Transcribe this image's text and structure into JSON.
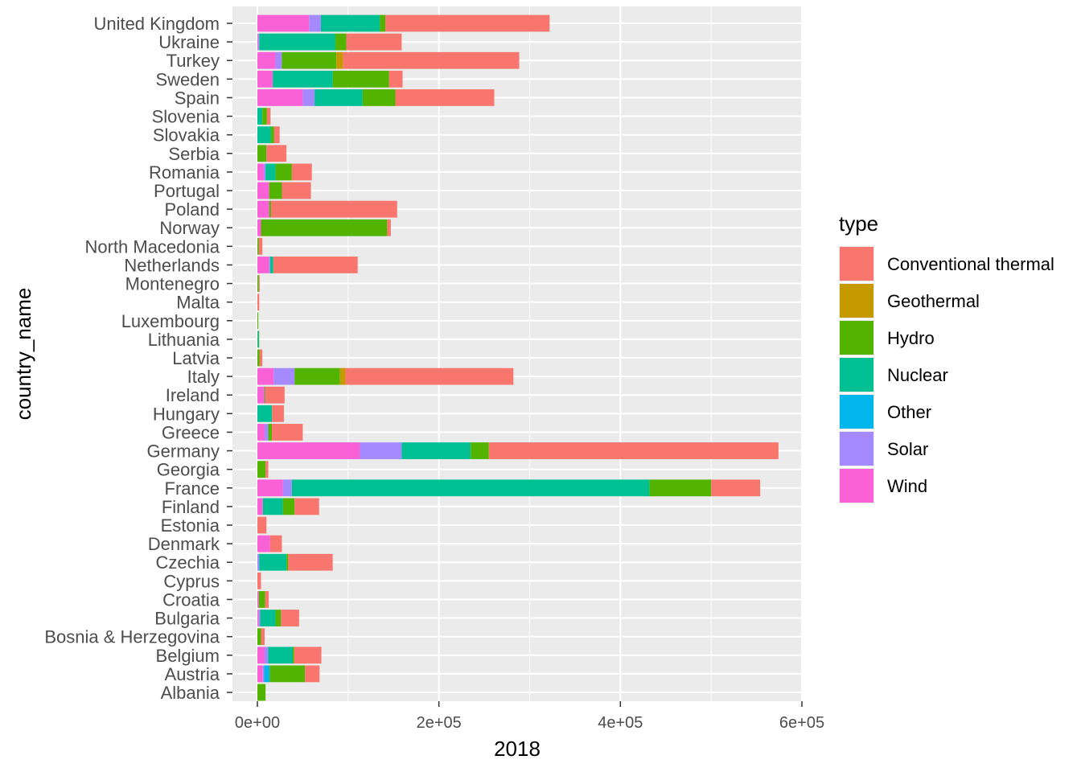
{
  "chart_data": {
    "type": "bar",
    "orientation": "horizontal",
    "stacked": true,
    "xlabel": "2018",
    "ylabel": "country_name",
    "xlim": [
      0,
      600000
    ],
    "x_ticks": [
      0,
      200000,
      400000,
      600000
    ],
    "x_tick_labels": [
      "0e+00",
      "2e+05",
      "4e+05",
      "6e+05"
    ],
    "grid": true,
    "legend": {
      "title": "type",
      "position": "right"
    },
    "categories": [
      "United Kingdom",
      "Ukraine",
      "Turkey",
      "Sweden",
      "Spain",
      "Slovenia",
      "Slovakia",
      "Serbia",
      "Romania",
      "Portugal",
      "Poland",
      "Norway",
      "North Macedonia",
      "Netherlands",
      "Montenegro",
      "Malta",
      "Luxembourg",
      "Lithuania",
      "Latvia",
      "Italy",
      "Ireland",
      "Hungary",
      "Greece",
      "Germany",
      "Georgia",
      "France",
      "Finland",
      "Estonia",
      "Denmark",
      "Czechia",
      "Cyprus",
      "Croatia",
      "Bulgaria",
      "Bosnia & Herzegovina",
      "Belgium",
      "Austria",
      "Albania"
    ],
    "stack_order": [
      "Wind",
      "Solar",
      "Other",
      "Nuclear",
      "Hydro",
      "Geothermal",
      "Conventional thermal"
    ],
    "series": [
      {
        "name": "Conventional thermal",
        "color": "#F8766D",
        "values": [
          181000,
          61000,
          194000,
          15000,
          109000,
          4000,
          6000,
          22000,
          22000,
          32000,
          139000,
          4000,
          4000,
          93000,
          1000,
          2000,
          0,
          0,
          3000,
          185000,
          21000,
          13000,
          34000,
          319000,
          3000,
          54000,
          27000,
          10000,
          13000,
          49000,
          4000,
          4000,
          20000,
          4000,
          30000,
          16000,
          0
        ]
      },
      {
        "name": "Geothermal",
        "color": "#C49A00",
        "values": [
          0,
          0,
          7500,
          0,
          0,
          0,
          0,
          0,
          0,
          0,
          0,
          0,
          0,
          0,
          0,
          0,
          0,
          0,
          0,
          6100,
          0,
          0,
          0,
          200,
          0,
          0,
          0,
          0,
          0,
          0,
          0,
          0,
          0,
          0,
          0,
          0,
          0
        ]
      },
      {
        "name": "Hydro",
        "color": "#53B400",
        "values": [
          6000,
          12000,
          60000,
          62000,
          36000,
          5000,
          3500,
          10000,
          18000,
          14000,
          2000,
          139000,
          1500,
          0,
          1500,
          0,
          1000,
          1000,
          2500,
          50000,
          1000,
          200,
          4000,
          20000,
          9000,
          68000,
          13000,
          0,
          0,
          2000,
          0,
          7000,
          6000,
          4000,
          1500,
          39000,
          9000
        ]
      },
      {
        "name": "Nuclear",
        "color": "#00C094",
        "values": [
          65000,
          84000,
          0,
          66000,
          53000,
          5500,
          15000,
          0,
          11000,
          0,
          0,
          0,
          0,
          3500,
          0,
          0,
          0,
          0,
          0,
          0,
          0,
          16000,
          0,
          76000,
          0,
          394000,
          22000,
          0,
          0,
          30000,
          0,
          0,
          17000,
          0,
          27000,
          0,
          0
        ]
      },
      {
        "name": "Other",
        "color": "#00B6EB",
        "values": [
          0,
          0,
          0,
          0,
          0,
          0,
          0,
          0,
          0,
          0,
          0,
          0,
          0,
          0,
          0,
          0,
          0,
          1000,
          0,
          0,
          0,
          0,
          0,
          0,
          0,
          0,
          0,
          0,
          0,
          0,
          0,
          0,
          0,
          0,
          0,
          6000,
          0
        ]
      },
      {
        "name": "Solar",
        "color": "#A58AFF",
        "values": [
          13000,
          1000,
          7000,
          0,
          13000,
          0,
          0,
          0,
          2000,
          0,
          0,
          0,
          0,
          1000,
          0,
          0,
          0,
          0,
          0,
          23000,
          0,
          0,
          4000,
          46000,
          0,
          10000,
          0,
          0,
          0,
          2000,
          0,
          0,
          1500,
          0,
          4000,
          1500,
          0
        ]
      },
      {
        "name": "Wind",
        "color": "#FB61D7",
        "values": [
          57000,
          1000,
          20000,
          17000,
          50000,
          0,
          0,
          0,
          7000,
          13000,
          13000,
          4000,
          0,
          13000,
          0,
          0,
          0,
          0,
          0,
          18000,
          8000,
          0,
          8000,
          113000,
          0,
          28000,
          6000,
          0,
          14000,
          0,
          0,
          1500,
          1500,
          0,
          8000,
          6000,
          0
        ]
      }
    ]
  }
}
